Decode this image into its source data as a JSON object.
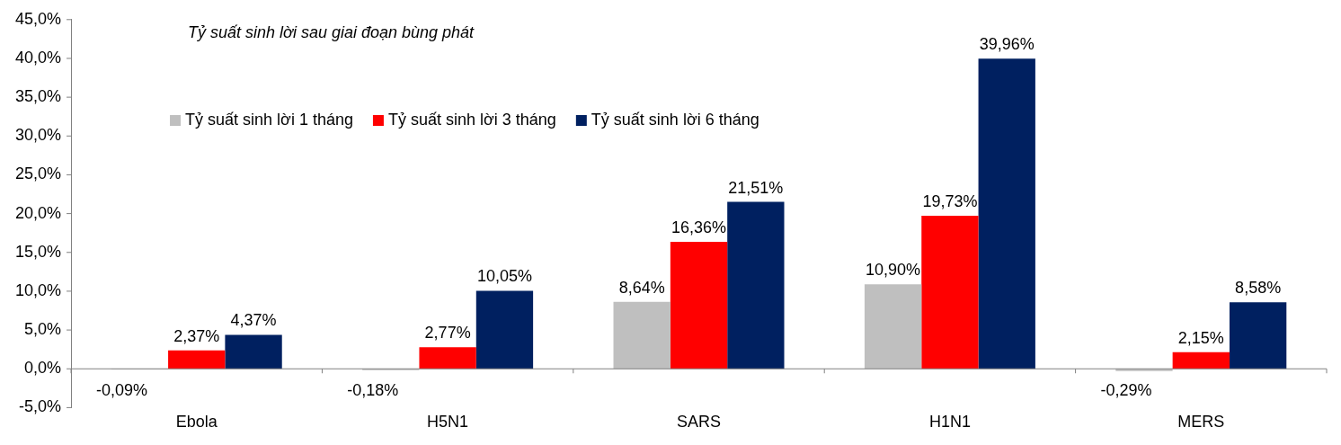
{
  "chart_data": {
    "type": "bar",
    "annotations": [
      "Tỷ suất sinh lời sau giai đoạn bùng phát"
    ],
    "categories": [
      "Ebola",
      "H5N1",
      "SARS",
      "H1N1",
      "MERS"
    ],
    "series": [
      {
        "name": "Tỷ suất sinh lời 1 tháng",
        "color": "#bfbfbf",
        "values": [
          -0.09,
          -0.18,
          8.64,
          10.9,
          -0.29
        ],
        "value_labels": [
          "-0,09%",
          "-0,18%",
          "8,64%",
          "10,90%",
          "-0,29%"
        ]
      },
      {
        "name": "Tỷ suất sinh lời 3 tháng",
        "color": "#ff0000",
        "values": [
          2.37,
          2.77,
          16.36,
          19.73,
          2.15
        ],
        "value_labels": [
          "2,37%",
          "2,77%",
          "16,36%",
          "19,73%",
          "2,15%"
        ]
      },
      {
        "name": "Tỷ suất sinh lời 6 tháng",
        "color": "#002060",
        "values": [
          4.37,
          10.05,
          21.51,
          39.96,
          8.58
        ],
        "value_labels": [
          "4,37%",
          "10,05%",
          "21,51%",
          "39,96%",
          "8,58%"
        ]
      }
    ],
    "ylim": [
      -5,
      45
    ],
    "yticks": [
      {
        "value": -5,
        "label": "-5,0%"
      },
      {
        "value": 0,
        "label": "0,0%"
      },
      {
        "value": 5,
        "label": "5,0%"
      },
      {
        "value": 10,
        "label": "10,0%"
      },
      {
        "value": 15,
        "label": "15,0%"
      },
      {
        "value": 20,
        "label": "20,0%"
      },
      {
        "value": 25,
        "label": "25,0%"
      },
      {
        "value": 30,
        "label": "30,0%"
      },
      {
        "value": 35,
        "label": "35,0%"
      },
      {
        "value": 40,
        "label": "40,0%"
      },
      {
        "value": 45,
        "label": "45,0%"
      }
    ],
    "legend": "top left"
  }
}
